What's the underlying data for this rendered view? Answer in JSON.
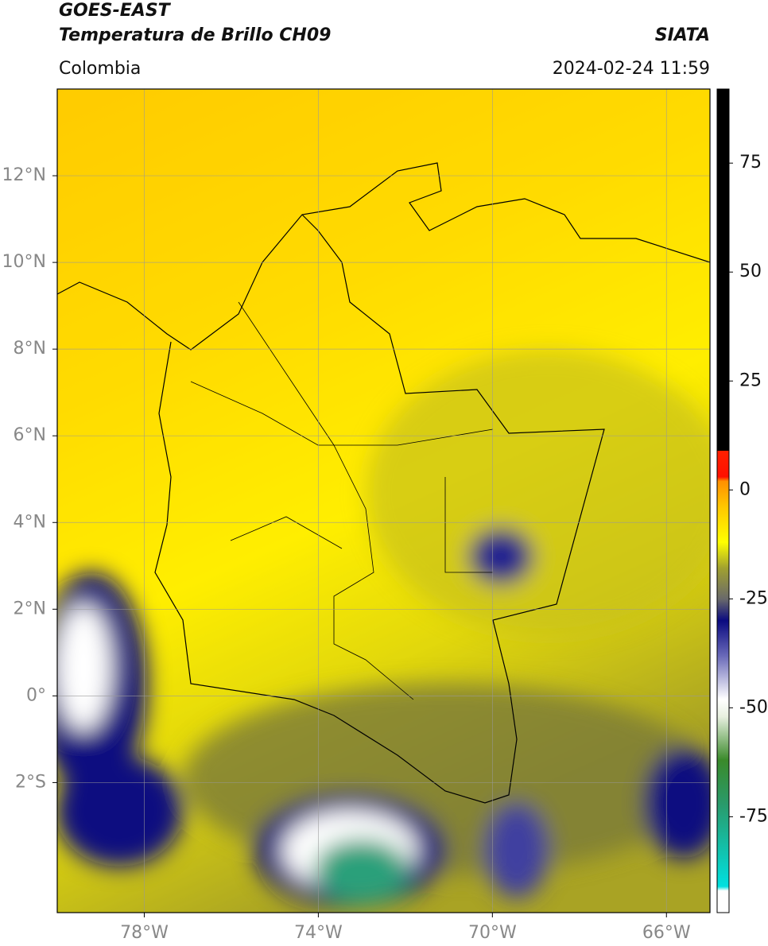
{
  "header": {
    "title_line1": "GOES-EAST",
    "title_line2": "Temperatura de Brillo CH09",
    "source": "SIATA",
    "region": "Colombia",
    "datetime": "2024-02-24 11:59"
  },
  "map": {
    "xlim": [
      -80,
      -65
    ],
    "ylim": [
      -5,
      14
    ],
    "xticks": [
      {
        "value": -78,
        "label": "78°W"
      },
      {
        "value": -74,
        "label": "74°W"
      },
      {
        "value": -70,
        "label": "70°W"
      },
      {
        "value": -66,
        "label": "66°W"
      }
    ],
    "yticks": [
      {
        "value": 12,
        "label": "12°N"
      },
      {
        "value": 10,
        "label": "10°N"
      },
      {
        "value": 8,
        "label": "8°N"
      },
      {
        "value": 6,
        "label": "6°N"
      },
      {
        "value": 4,
        "label": "4°N"
      },
      {
        "value": 2,
        "label": "2°N"
      },
      {
        "value": 0,
        "label": "0°"
      },
      {
        "value": -2,
        "label": "2°S"
      }
    ],
    "grid": true
  },
  "colorbar": {
    "lim": [
      -97,
      92
    ],
    "ticks": [
      75,
      50,
      25,
      0,
      -25,
      -50,
      -75
    ],
    "stops": [
      {
        "value": -97,
        "color": "#ffffff"
      },
      {
        "value": -92,
        "color": "#ffffff"
      },
      {
        "value": -91,
        "color": "#00e0e0"
      },
      {
        "value": -72,
        "color": "#2a9a6a"
      },
      {
        "value": -62,
        "color": "#3a8a2a"
      },
      {
        "value": -52,
        "color": "#e8f0e0"
      },
      {
        "value": -48,
        "color": "#ffffff"
      },
      {
        "value": -38,
        "color": "#6868b8"
      },
      {
        "value": -30,
        "color": "#0a0a80"
      },
      {
        "value": -25,
        "color": "#6a6a6a"
      },
      {
        "value": -18,
        "color": "#a0a030"
      },
      {
        "value": -12,
        "color": "#ffff00"
      },
      {
        "value": -4,
        "color": "#ffc800"
      },
      {
        "value": 2,
        "color": "#ff9000"
      },
      {
        "value": 3,
        "color": "#ff1000"
      },
      {
        "value": 9,
        "color": "#ff2000"
      },
      {
        "value": 9,
        "color": "#000000"
      },
      {
        "value": 92,
        "color": "#000000"
      }
    ]
  }
}
